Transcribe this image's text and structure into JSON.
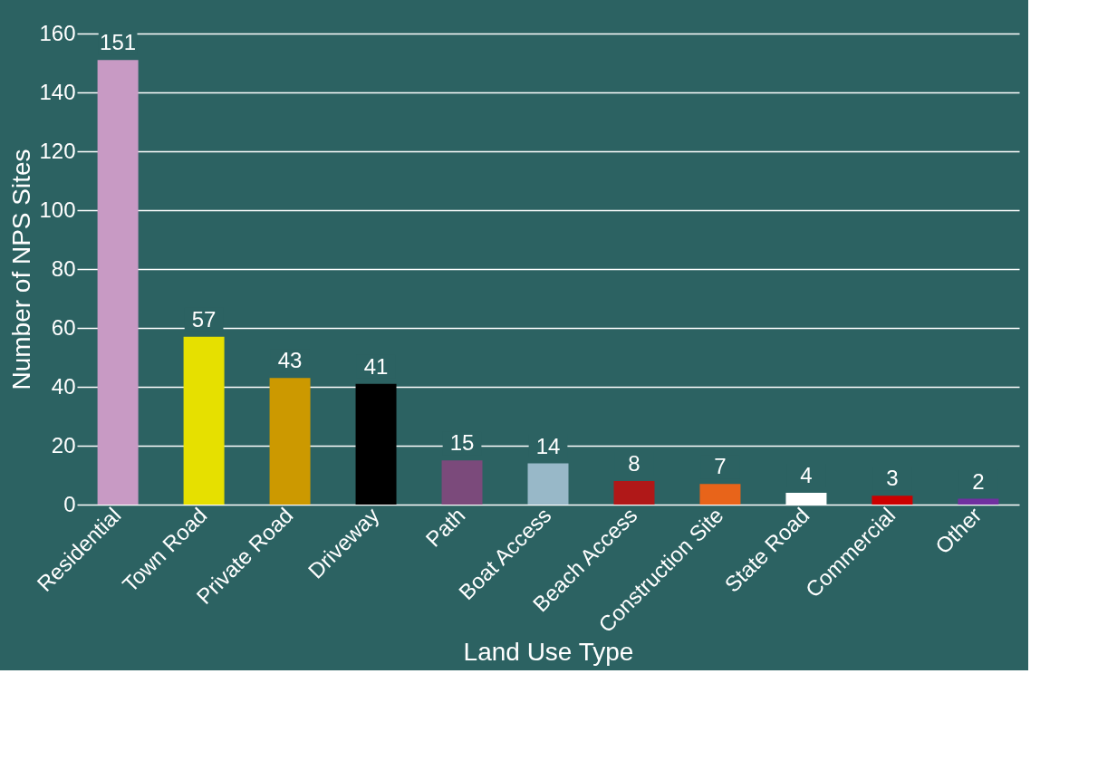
{
  "chart_data": {
    "type": "bar",
    "xlabel": "Land Use Type",
    "ylabel": "Number of NPS Sites",
    "categories": [
      "Residential",
      "Town Road",
      "Private Road",
      "Driveway",
      "Path",
      "Boat Access",
      "Beach Access",
      "Construction Site",
      "State Road",
      "Commercial",
      "Other"
    ],
    "values": [
      151,
      57,
      43,
      41,
      15,
      14,
      8,
      7,
      4,
      3,
      2
    ],
    "colors": [
      "#c89ac4",
      "#e6e000",
      "#cc9900",
      "#000000",
      "#7b4a7b",
      "#98b8c8",
      "#b01818",
      "#e8641a",
      "#ffffff",
      "#cc0000",
      "#7030a0"
    ],
    "ylim": [
      0,
      160
    ],
    "yticks": [
      0,
      20,
      40,
      60,
      80,
      100,
      120,
      140,
      160
    ],
    "grid": "y",
    "data_labels": true
  }
}
